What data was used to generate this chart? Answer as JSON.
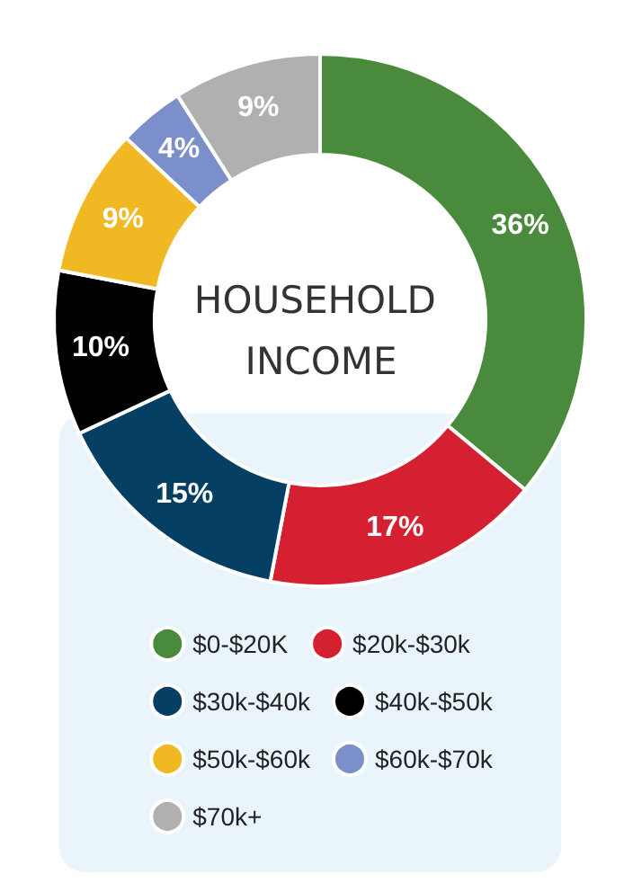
{
  "chart_data": {
    "type": "donut",
    "title": "HOUSEHOLD INCOME",
    "categories": [
      "$0-$20K",
      "$20k-$30k",
      "$30k-$40k",
      "$40k-$50k",
      "$50k-$60k",
      "$60k-$70k",
      "$70k+"
    ],
    "values": [
      36,
      17,
      15,
      10,
      9,
      4,
      9
    ],
    "colors": [
      "#4a8a3c",
      "#d42030",
      "#053f63",
      "#000000",
      "#f0b822",
      "#7b8fcb",
      "#b0b0b0"
    ],
    "value_labels": [
      "36%",
      "17%",
      "15%",
      "10%",
      "9%",
      "4%",
      "9%"
    ],
    "legend": "bottom"
  }
}
